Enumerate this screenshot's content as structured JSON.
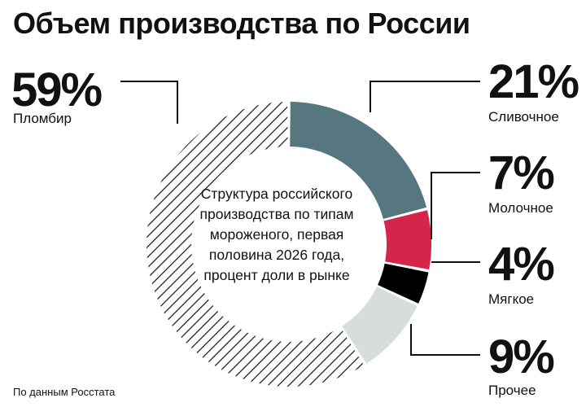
{
  "title": "Объем производства по России",
  "center_text": "Структура российского производства по типам мороженого, первая половина 2026 года, процент доли в рынке",
  "source": "По данным Росстата",
  "chart_data": {
    "type": "pie",
    "variant": "donut",
    "title": "Объем производства по России",
    "unit": "%",
    "slices": [
      {
        "label": "Пломбир",
        "value": 59,
        "value_label": "59%",
        "color": "#ffffff",
        "pattern": "diagonal-hatch"
      },
      {
        "label": "Сливочное",
        "value": 21,
        "value_label": "21%",
        "color": "#567680"
      },
      {
        "label": "Молочное",
        "value": 7,
        "value_label": "7%",
        "color": "#d6254b"
      },
      {
        "label": "Мягкое",
        "value": 4,
        "value_label": "4%",
        "color": "#000000"
      },
      {
        "label": "Прочее",
        "value": 9,
        "value_label": "9%",
        "color": "#d7ddd9"
      }
    ]
  }
}
